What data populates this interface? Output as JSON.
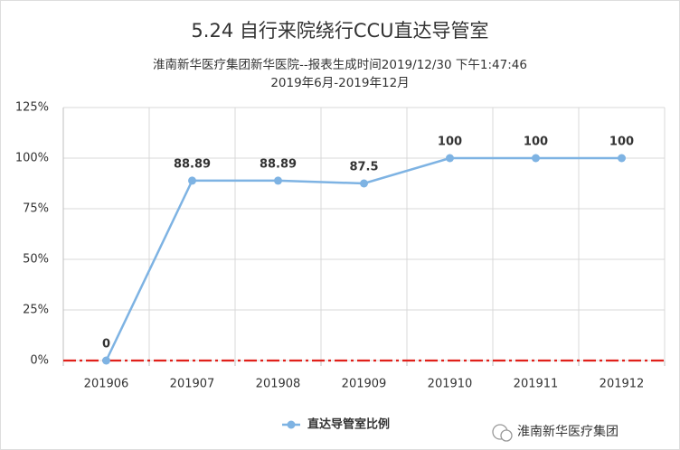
{
  "chart_data": {
    "type": "line",
    "title": "5.24 自行来院绕行CCU直达导管室",
    "subtitle": [
      "淮南新华医疗集团新华医院--报表生成时间2019/12/30 下午1:47:46",
      "2019年6月-2019年12月"
    ],
    "categories": [
      "201906",
      "201907",
      "201908",
      "201909",
      "201910",
      "201911",
      "201912"
    ],
    "series": [
      {
        "name": "直达导管室比例",
        "color": "#7eb3e3",
        "values": [
          0,
          88.89,
          88.89,
          87.5,
          100,
          100,
          100
        ]
      }
    ],
    "ylim": [
      0,
      125
    ],
    "yticks": [
      {
        "value": 0,
        "label": "0%"
      },
      {
        "value": 25,
        "label": "25%"
      },
      {
        "value": 50,
        "label": "50%"
      },
      {
        "value": 75,
        "label": "75%"
      },
      {
        "value": 100,
        "label": "100%"
      },
      {
        "value": 125,
        "label": "125%"
      }
    ],
    "grid": true,
    "legend": "bottom",
    "reference_line": {
      "value": 0,
      "color": "#e0201a"
    },
    "watermark": "淮南新华医疗集团"
  }
}
